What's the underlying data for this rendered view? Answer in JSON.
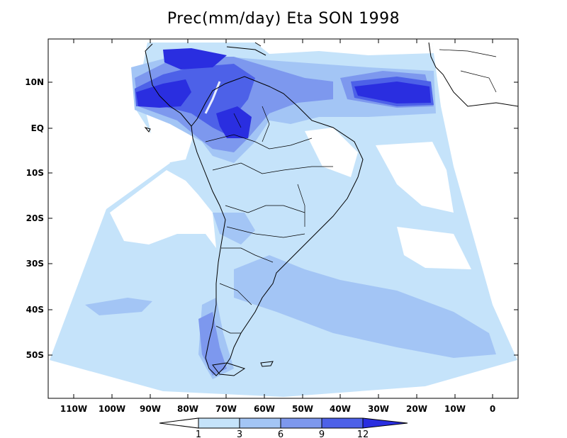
{
  "title": "Prec(mm/day) Eta SON 1998",
  "colors": {
    "lt1": "#ffffff",
    "c1_3": "#c5e3fa",
    "c3_6": "#a3c5f5",
    "c6_9": "#7d98ee",
    "c9_12": "#4d61e8",
    "gt12": "#2a2ee0",
    "frame": "#000000"
  },
  "axes": {
    "lat_ticks": [
      "10N",
      "EQ",
      "10S",
      "20S",
      "30S",
      "40S",
      "50S"
    ],
    "lon_ticks": [
      "110W",
      "100W",
      "90W",
      "80W",
      "70W",
      "60W",
      "50W",
      "40W",
      "30W",
      "20W",
      "10W",
      "0"
    ]
  },
  "colorbar": {
    "levels": [
      "1",
      "3",
      "6",
      "9",
      "12"
    ],
    "units": "mm/day"
  }
}
